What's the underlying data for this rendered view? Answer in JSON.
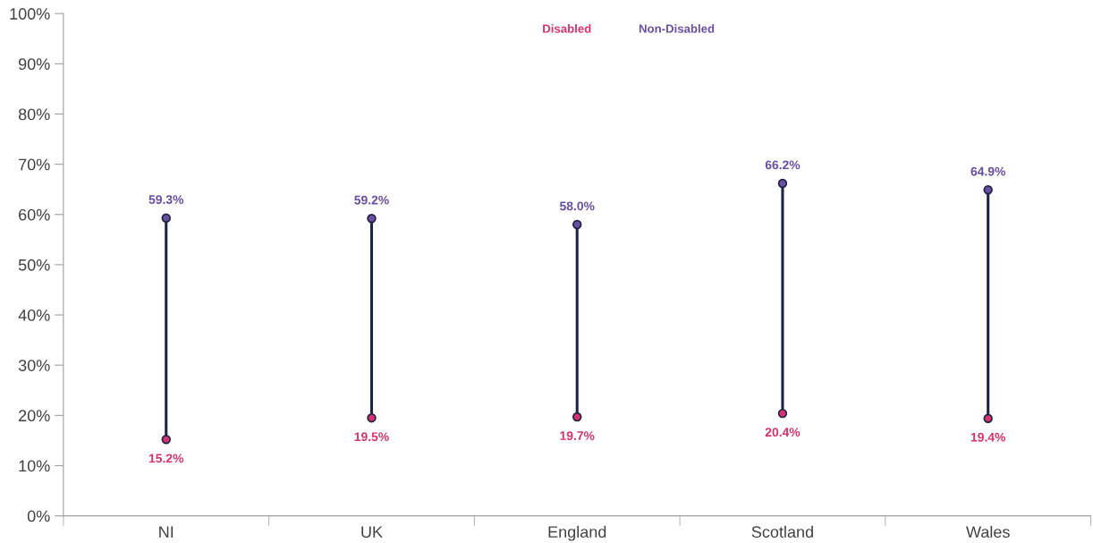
{
  "chart_data": {
    "type": "scatter",
    "categories": [
      "NI",
      "UK",
      "England",
      "Scotland",
      "Wales"
    ],
    "color": "#1e2346",
    "series": [
      {
        "name": "Disabled",
        "color": "#d6336c",
        "values": [
          15.2,
          19.5,
          19.7,
          20.4,
          19.4
        ],
        "value_labels": [
          "15.2%",
          "19.5%",
          "19.7%",
          "20.4%",
          "19.4%"
        ]
      },
      {
        "name": "Non-Disabled",
        "color": "#6a4ea0",
        "values": [
          59.3,
          59.2,
          58.0,
          66.2,
          64.9
        ],
        "value_labels": [
          "59.3%",
          "59.2%",
          "58.0%",
          "66.2%",
          "64.9%"
        ]
      }
    ],
    "ylim": [
      0,
      100
    ],
    "yticks": [
      {
        "value": 0,
        "label": "0%"
      },
      {
        "value": 10,
        "label": "10%"
      },
      {
        "value": 20,
        "label": "20%"
      },
      {
        "value": 30,
        "label": "30%"
      },
      {
        "value": 40,
        "label": "40%"
      },
      {
        "value": 50,
        "label": "50%"
      },
      {
        "value": 60,
        "label": "60%"
      },
      {
        "value": 70,
        "label": "70%"
      },
      {
        "value": 80,
        "label": "80%"
      },
      {
        "value": 90,
        "label": "90%"
      },
      {
        "value": 100,
        "label": "100%"
      }
    ],
    "grid": false,
    "legend": "top",
    "marker": "circle"
  }
}
